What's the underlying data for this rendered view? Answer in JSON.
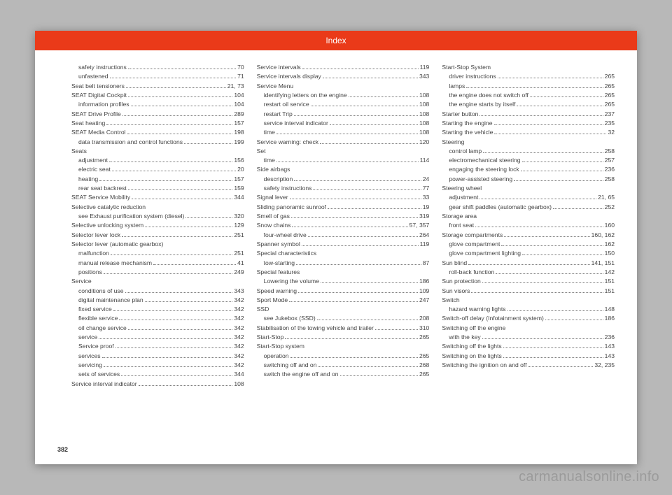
{
  "header": {
    "title": "Index"
  },
  "page_number": "382",
  "watermark": "carmanualsonline.info",
  "columns": [
    [
      {
        "label": "safety instructions",
        "pg": "70",
        "sub": true
      },
      {
        "label": "unfastened",
        "pg": "71",
        "sub": true
      },
      {
        "label": "Seat belt tensioners",
        "pg": "21, 73"
      },
      {
        "label": "SEAT Digital Cockpit",
        "pg": "104"
      },
      {
        "label": "information profiles",
        "pg": "104",
        "sub": true
      },
      {
        "label": "SEAT Drive Profile",
        "pg": "289"
      },
      {
        "label": "Seat heating",
        "pg": "157"
      },
      {
        "label": "SEAT Media Control",
        "pg": "198"
      },
      {
        "label": "data transmission and control functions",
        "pg": "199",
        "sub": true
      },
      {
        "label": "Seats",
        "pg": ""
      },
      {
        "label": "adjustment",
        "pg": "156",
        "sub": true
      },
      {
        "label": "electric seat",
        "pg": "20",
        "sub": true
      },
      {
        "label": "heating",
        "pg": "157",
        "sub": true
      },
      {
        "label": "rear seat backrest",
        "pg": "159",
        "sub": true
      },
      {
        "label": "SEAT Service Mobility",
        "pg": "344"
      },
      {
        "label": "Selective catalytic reduction",
        "pg": ""
      },
      {
        "label": "see Exhaust purification system (diesel)",
        "pg": "320",
        "sub": true
      },
      {
        "label": "Selective unlocking system",
        "pg": "129"
      },
      {
        "label": "Selector lever lock",
        "pg": "251"
      },
      {
        "label": "Selector lever (automatic gearbox)",
        "pg": ""
      },
      {
        "label": "malfunction",
        "pg": "251",
        "sub": true
      },
      {
        "label": "manual release mechanism",
        "pg": "41",
        "sub": true
      },
      {
        "label": "positions",
        "pg": "249",
        "sub": true
      },
      {
        "label": "Service",
        "pg": ""
      },
      {
        "label": "conditions of use",
        "pg": "343",
        "sub": true
      },
      {
        "label": "digital maintenance plan",
        "pg": "342",
        "sub": true
      },
      {
        "label": "fixed service",
        "pg": "342",
        "sub": true
      },
      {
        "label": "flexible service",
        "pg": "342",
        "sub": true
      },
      {
        "label": "oil change service",
        "pg": "342",
        "sub": true
      },
      {
        "label": "service",
        "pg": "342",
        "sub": true
      },
      {
        "label": "Service proof",
        "pg": "342",
        "sub": true
      },
      {
        "label": "services",
        "pg": "342",
        "sub": true
      },
      {
        "label": "servicing",
        "pg": "342",
        "sub": true
      },
      {
        "label": "sets of services",
        "pg": "344",
        "sub": true
      },
      {
        "label": "Service interval indicator",
        "pg": "108"
      }
    ],
    [
      {
        "label": "Service intervals",
        "pg": "119"
      },
      {
        "label": "Service intervals display",
        "pg": "343"
      },
      {
        "label": "Service Menu",
        "pg": ""
      },
      {
        "label": "identifying letters on the engine",
        "pg": "108",
        "sub": true
      },
      {
        "label": "restart oil service",
        "pg": "108",
        "sub": true
      },
      {
        "label": "restart Trip",
        "pg": "108",
        "sub": true
      },
      {
        "label": "service interval indicator",
        "pg": "108",
        "sub": true
      },
      {
        "label": "time",
        "pg": "108",
        "sub": true
      },
      {
        "label": "Service warning: check",
        "pg": "120"
      },
      {
        "label": "Set",
        "pg": ""
      },
      {
        "label": "time",
        "pg": "114",
        "sub": true
      },
      {
        "label": "Side airbags",
        "pg": ""
      },
      {
        "label": "description",
        "pg": "24",
        "sub": true
      },
      {
        "label": "safety instructions",
        "pg": "77",
        "sub": true
      },
      {
        "label": "Signal lever",
        "pg": "33"
      },
      {
        "label": "Sliding panoramic sunroof",
        "pg": "19"
      },
      {
        "label": "Smell of gas",
        "pg": "319"
      },
      {
        "label": "Snow chains",
        "pg": "57, 357"
      },
      {
        "label": "four-wheel drive",
        "pg": "264",
        "sub": true
      },
      {
        "label": "Spanner symbol",
        "pg": "119"
      },
      {
        "label": "Special characteristics",
        "pg": ""
      },
      {
        "label": "tow-starting",
        "pg": "87",
        "sub": true
      },
      {
        "label": "Special features",
        "pg": ""
      },
      {
        "label": "Lowering the volume",
        "pg": "186",
        "sub": true
      },
      {
        "label": "Speed warning",
        "pg": "109"
      },
      {
        "label": "Sport Mode",
        "pg": "247"
      },
      {
        "label": "SSD",
        "pg": ""
      },
      {
        "label": "see Jukebox (SSD)",
        "pg": "208",
        "sub": true
      },
      {
        "label": "Stabilisation of the towing vehicle and trailer",
        "pg": "310"
      },
      {
        "label": "Start-Stop",
        "pg": "265"
      },
      {
        "label": "Start-Stop system",
        "pg": ""
      },
      {
        "label": "operation",
        "pg": "265",
        "sub": true
      },
      {
        "label": "switching off and on",
        "pg": "268",
        "sub": true
      },
      {
        "label": "switch the engine off and on",
        "pg": "265",
        "sub": true
      }
    ],
    [
      {
        "label": "Start-Stop System",
        "pg": ""
      },
      {
        "label": "driver instructions",
        "pg": "265",
        "sub": true
      },
      {
        "label": "lamps",
        "pg": "265",
        "sub": true
      },
      {
        "label": "the engine does not switch off",
        "pg": "265",
        "sub": true
      },
      {
        "label": "the engine starts by itself",
        "pg": "265",
        "sub": true
      },
      {
        "label": "Starter button",
        "pg": "237"
      },
      {
        "label": "Starting the engine",
        "pg": "235"
      },
      {
        "label": "Starting the vehicle",
        "pg": "32"
      },
      {
        "label": "Steering",
        "pg": ""
      },
      {
        "label": "control lamp",
        "pg": "258",
        "sub": true
      },
      {
        "label": "electromechanical steering",
        "pg": "257",
        "sub": true
      },
      {
        "label": "engaging the steering lock",
        "pg": "236",
        "sub": true
      },
      {
        "label": "power-assisted steering",
        "pg": "258",
        "sub": true
      },
      {
        "label": "Steering wheel",
        "pg": ""
      },
      {
        "label": "adjustment",
        "pg": "21, 65",
        "sub": true
      },
      {
        "label": "gear shift paddles (automatic gearbox)",
        "pg": "252",
        "sub": true
      },
      {
        "label": "Storage area",
        "pg": ""
      },
      {
        "label": "front seat",
        "pg": "160",
        "sub": true
      },
      {
        "label": "Storage compartments",
        "pg": "160, 162"
      },
      {
        "label": "glove compartment",
        "pg": "162",
        "sub": true
      },
      {
        "label": "glove compartment lighting",
        "pg": "150",
        "sub": true
      },
      {
        "label": "Sun blind",
        "pg": "141, 151"
      },
      {
        "label": "roll-back function",
        "pg": "142",
        "sub": true
      },
      {
        "label": "Sun protection",
        "pg": "151"
      },
      {
        "label": "Sun visors",
        "pg": "151"
      },
      {
        "label": "Switch",
        "pg": ""
      },
      {
        "label": "hazard warning lights",
        "pg": "148",
        "sub": true
      },
      {
        "label": "Switch-off delay (Infotainment system)",
        "pg": "186"
      },
      {
        "label": "Switching off the engine",
        "pg": ""
      },
      {
        "label": "with the key",
        "pg": "236",
        "sub": true
      },
      {
        "label": "Switching off the lights",
        "pg": "143"
      },
      {
        "label": "Switching on the lights",
        "pg": "143"
      },
      {
        "label": "Switching the ignition on and off",
        "pg": "32, 235"
      }
    ]
  ]
}
